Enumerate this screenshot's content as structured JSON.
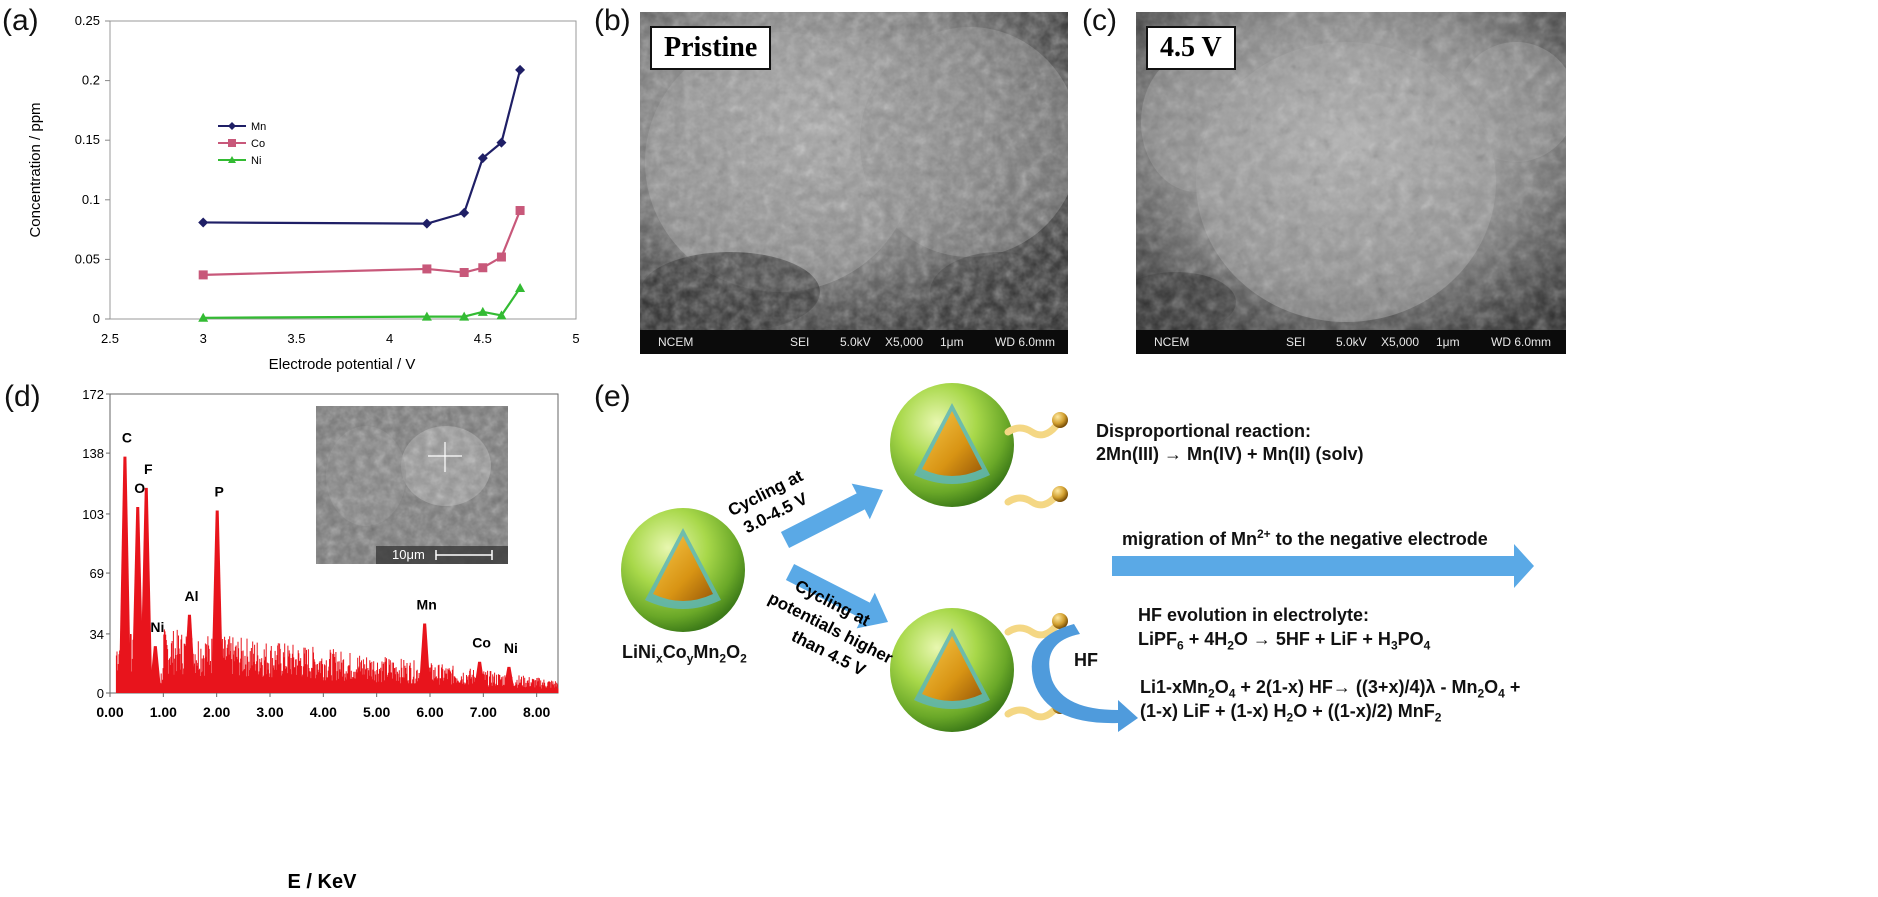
{
  "panels": {
    "a": "(a)",
    "b": "(b)",
    "c": "(c)",
    "d": "(d)",
    "e": "(e)"
  },
  "chart_data": [
    {
      "type": "line",
      "title": "",
      "xlabel": "Electrode potential / V",
      "ylabel": "Concentration / ppm",
      "xlim": [
        2.5,
        5
      ],
      "ylim": [
        0,
        0.25
      ],
      "x_ticks": [
        "2.5",
        "3",
        "3.5",
        "4",
        "4.5",
        "5"
      ],
      "y_ticks": [
        "0",
        "0.05",
        "0.1",
        "0.15",
        "0.2",
        "0.25"
      ],
      "legend_position": "left",
      "x": [
        3.0,
        4.2,
        4.4,
        4.5,
        4.6,
        4.7
      ],
      "series": [
        {
          "name": "Mn",
          "color": "#1f1f66",
          "marker": "diamond",
          "values": [
            0.081,
            0.08,
            0.089,
            0.135,
            0.148,
            0.209
          ]
        },
        {
          "name": "Co",
          "color": "#c8587a",
          "marker": "square",
          "values": [
            0.037,
            0.042,
            0.039,
            0.043,
            0.052,
            0.091
          ]
        },
        {
          "name": "Ni",
          "color": "#33bb33",
          "marker": "triangle",
          "values": [
            0.001,
            0.002,
            0.002,
            0.006,
            0.003,
            0.026
          ]
        }
      ]
    },
    {
      "type": "bar",
      "title": "",
      "xlabel": "E / KeV",
      "ylabel": "",
      "xlim": [
        0,
        8.4
      ],
      "ylim": [
        0,
        172
      ],
      "x_ticks": [
        "0.00",
        "1.00",
        "2.00",
        "3.00",
        "4.00",
        "5.00",
        "6.00",
        "7.00",
        "8.00"
      ],
      "y_ticks": [
        "0",
        "34",
        "69",
        "103",
        "138",
        "172"
      ],
      "color": "#e8141c",
      "peaks": [
        {
          "label": "C",
          "energy": 0.28,
          "counts": 136
        },
        {
          "label": "O",
          "energy": 0.52,
          "counts": 107
        },
        {
          "label": "F",
          "energy": 0.68,
          "counts": 118
        },
        {
          "label": "Ni",
          "energy": 0.85,
          "counts": 27
        },
        {
          "label": "Al",
          "energy": 1.49,
          "counts": 45
        },
        {
          "label": "P",
          "energy": 2.01,
          "counts": 105
        },
        {
          "label": "Mn",
          "energy": 5.9,
          "counts": 40
        },
        {
          "label": "Co",
          "energy": 6.93,
          "counts": 18
        },
        {
          "label": "Ni",
          "energy": 7.48,
          "counts": 15
        }
      ]
    }
  ],
  "sem": {
    "b": {
      "tag": "Pristine",
      "footer": [
        "NCEM",
        "SEI",
        "5.0kV",
        "X5,000",
        "1μm",
        "WD 6.0mm"
      ]
    },
    "c": {
      "tag": "4.5 V",
      "footer": [
        "NCEM",
        "SEI",
        "5.0kV",
        "X5,000",
        "1μm",
        "WD 6.0mm"
      ]
    },
    "inset_scale": "10μm"
  },
  "scheme": {
    "particle_label": "LiNixCoyMn2O2",
    "arrow_top": [
      "Cycling at",
      "3.0-4.5 V"
    ],
    "arrow_bottom": [
      "Cycling at",
      "potentials higher",
      "than 4.5 V"
    ],
    "disprop_title": "Disproportional reaction:",
    "disprop_eq": "2Mn(III) → Mn(IV) + Mn(II) (solv)",
    "migration": "migration of Mn2+ to the negative electrode",
    "hf_title": "HF evolution in electrolyte:",
    "hf_eq": "LiPF6 + 4H2O → 5HF + LiF + H3PO4",
    "hf_label": "HF",
    "reaction_line1": "Li1-xMn2O4 + 2(1-x) HF→ ((3+x)/4)λ - Mn2O4 +",
    "reaction_line2": "(1-x) LiF + (1-x) H2O + ((1-x)/2) MnF2",
    "colors": {
      "arrow": "#5aa9e6",
      "particle": "#8cc63f",
      "core": "#e6a520"
    }
  }
}
